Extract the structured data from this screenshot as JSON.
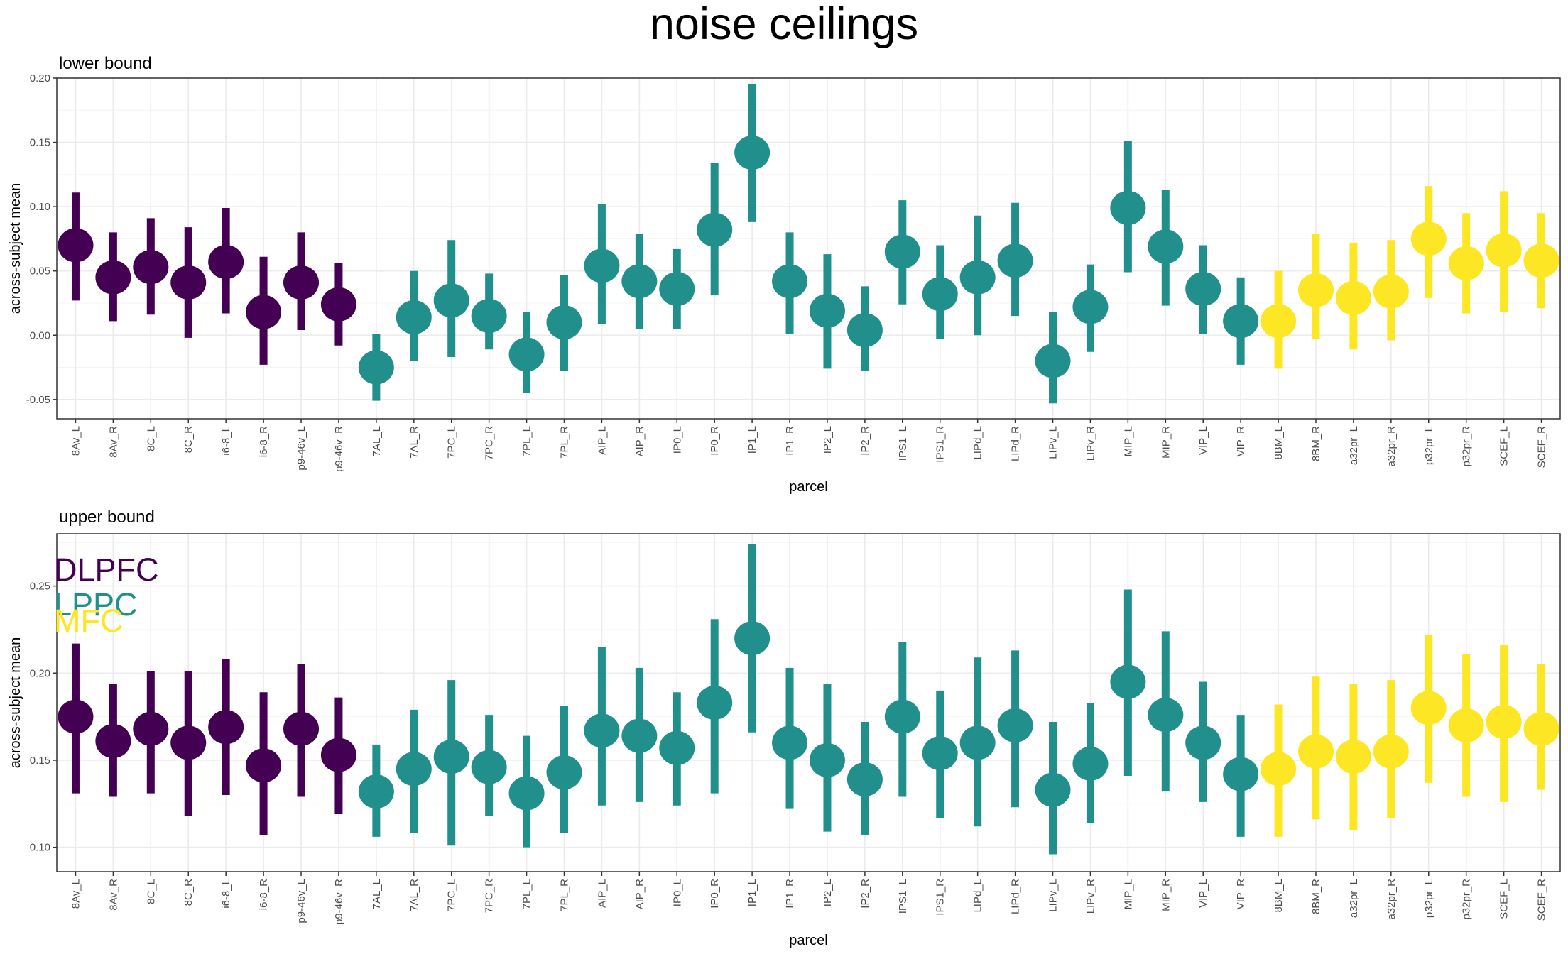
{
  "title": "noise ceilings",
  "colors": {
    "DLPFC": "#440154",
    "LPPC": "#21908C",
    "MFC": "#FDE725",
    "grid_major": "#ebebeb",
    "grid_minor": "#f4f4f4",
    "panel_border": "#333333"
  },
  "legend": [
    {
      "label": "DLPFC",
      "color": "#440154"
    },
    {
      "label": "LPPC",
      "color": "#21908C"
    },
    {
      "label": "MFC",
      "color": "#FDE725"
    }
  ],
  "chart_data": [
    {
      "type": "scatter",
      "title": "lower bound",
      "xlabel": "parcel",
      "ylabel": "across-subject mean",
      "ylim": [
        -0.065,
        0.2
      ],
      "yticks": [
        -0.05,
        0.0,
        0.05,
        0.1,
        0.15,
        0.2
      ],
      "ytick_labels": [
        "-0.05",
        "0.00",
        "0.05",
        "0.10",
        "0.15",
        "0.20"
      ],
      "grid": true,
      "categories": [
        "8Av_L",
        "8Av_R",
        "8C_L",
        "8C_R",
        "i6-8_L",
        "i6-8_R",
        "p9-46v_L",
        "p9-46v_R",
        "7AL_L",
        "7AL_R",
        "7PC_L",
        "7PC_R",
        "7PL_L",
        "7PL_R",
        "AIP_L",
        "AIP_R",
        "IP0_L",
        "IP0_R",
        "IP1_L",
        "IP1_R",
        "IP2_L",
        "IP2_R",
        "IPS1_L",
        "IPS1_R",
        "LIPd_L",
        "LIPd_R",
        "LIPv_L",
        "LIPv_R",
        "MIP_L",
        "MIP_R",
        "VIP_L",
        "VIP_R",
        "8BM_L",
        "8BM_R",
        "a32pr_L",
        "a32pr_R",
        "p32pr_L",
        "p32pr_R",
        "SCEF_L",
        "SCEF_R"
      ],
      "groups": [
        "DLPFC",
        "DLPFC",
        "DLPFC",
        "DLPFC",
        "DLPFC",
        "DLPFC",
        "DLPFC",
        "DLPFC",
        "LPPC",
        "LPPC",
        "LPPC",
        "LPPC",
        "LPPC",
        "LPPC",
        "LPPC",
        "LPPC",
        "LPPC",
        "LPPC",
        "LPPC",
        "LPPC",
        "LPPC",
        "LPPC",
        "LPPC",
        "LPPC",
        "LPPC",
        "LPPC",
        "LPPC",
        "LPPC",
        "LPPC",
        "LPPC",
        "LPPC",
        "LPPC",
        "MFC",
        "MFC",
        "MFC",
        "MFC",
        "MFC",
        "MFC",
        "MFC",
        "MFC"
      ],
      "mean": [
        0.07,
        0.045,
        0.053,
        0.041,
        0.057,
        0.018,
        0.041,
        0.024,
        -0.025,
        0.014,
        0.027,
        0.015,
        -0.015,
        0.01,
        0.054,
        0.042,
        0.036,
        0.082,
        0.142,
        0.042,
        0.019,
        0.004,
        0.065,
        0.032,
        0.045,
        0.058,
        -0.02,
        0.022,
        0.099,
        0.069,
        0.036,
        0.011,
        0.011,
        0.035,
        0.029,
        0.034,
        0.075,
        0.056,
        0.066,
        0.058
      ],
      "lower": [
        0.027,
        0.011,
        0.016,
        -0.002,
        0.017,
        -0.023,
        0.004,
        -0.008,
        -0.051,
        -0.02,
        -0.017,
        -0.011,
        -0.045,
        -0.028,
        0.009,
        0.005,
        0.005,
        0.031,
        0.088,
        0.001,
        -0.026,
        -0.028,
        0.024,
        -0.003,
        0.0,
        0.015,
        -0.053,
        -0.013,
        0.049,
        0.023,
        0.001,
        -0.023,
        -0.026,
        -0.003,
        -0.011,
        -0.004,
        0.029,
        0.017,
        0.018,
        0.021
      ],
      "upper": [
        0.111,
        0.08,
        0.091,
        0.084,
        0.099,
        0.061,
        0.08,
        0.056,
        0.001,
        0.05,
        0.074,
        0.048,
        0.018,
        0.047,
        0.102,
        0.079,
        0.067,
        0.134,
        0.195,
        0.08,
        0.063,
        0.038,
        0.105,
        0.07,
        0.093,
        0.103,
        0.018,
        0.055,
        0.151,
        0.113,
        0.07,
        0.045,
        0.05,
        0.079,
        0.072,
        0.074,
        0.116,
        0.095,
        0.112,
        0.095
      ]
    },
    {
      "type": "scatter",
      "title": "upper bound",
      "xlabel": "parcel",
      "ylabel": "across-subject mean",
      "ylim": [
        0.086,
        0.28
      ],
      "yticks": [
        0.1,
        0.15,
        0.2,
        0.25
      ],
      "ytick_labels": [
        "0.10",
        "0.15",
        "0.20",
        "0.25"
      ],
      "grid": true,
      "legend_position": "top-left",
      "categories": [
        "8Av_L",
        "8Av_R",
        "8C_L",
        "8C_R",
        "i6-8_L",
        "i6-8_R",
        "p9-46v_L",
        "p9-46v_R",
        "7AL_L",
        "7AL_R",
        "7PC_L",
        "7PC_R",
        "7PL_L",
        "7PL_R",
        "AIP_L",
        "AIP_R",
        "IP0_L",
        "IP0_R",
        "IP1_L",
        "IP1_R",
        "IP2_L",
        "IP2_R",
        "IPS1_L",
        "IPS1_R",
        "LIPd_L",
        "LIPd_R",
        "LIPv_L",
        "LIPv_R",
        "MIP_L",
        "MIP_R",
        "VIP_L",
        "VIP_R",
        "8BM_L",
        "8BM_R",
        "a32pr_L",
        "a32pr_R",
        "p32pr_L",
        "p32pr_R",
        "SCEF_L",
        "SCEF_R"
      ],
      "groups": [
        "DLPFC",
        "DLPFC",
        "DLPFC",
        "DLPFC",
        "DLPFC",
        "DLPFC",
        "DLPFC",
        "DLPFC",
        "LPPC",
        "LPPC",
        "LPPC",
        "LPPC",
        "LPPC",
        "LPPC",
        "LPPC",
        "LPPC",
        "LPPC",
        "LPPC",
        "LPPC",
        "LPPC",
        "LPPC",
        "LPPC",
        "LPPC",
        "LPPC",
        "LPPC",
        "LPPC",
        "LPPC",
        "LPPC",
        "LPPC",
        "LPPC",
        "LPPC",
        "LPPC",
        "MFC",
        "MFC",
        "MFC",
        "MFC",
        "MFC",
        "MFC",
        "MFC",
        "MFC"
      ],
      "mean": [
        0.175,
        0.161,
        0.168,
        0.16,
        0.169,
        0.147,
        0.168,
        0.153,
        0.132,
        0.145,
        0.152,
        0.146,
        0.131,
        0.143,
        0.167,
        0.164,
        0.157,
        0.183,
        0.22,
        0.16,
        0.15,
        0.139,
        0.175,
        0.154,
        0.16,
        0.17,
        0.133,
        0.148,
        0.195,
        0.176,
        0.16,
        0.142,
        0.145,
        0.155,
        0.152,
        0.155,
        0.18,
        0.17,
        0.172,
        0.168
      ],
      "lower": [
        0.131,
        0.129,
        0.131,
        0.118,
        0.13,
        0.107,
        0.129,
        0.119,
        0.106,
        0.108,
        0.101,
        0.118,
        0.1,
        0.108,
        0.124,
        0.126,
        0.124,
        0.131,
        0.166,
        0.122,
        0.109,
        0.107,
        0.129,
        0.117,
        0.112,
        0.123,
        0.096,
        0.114,
        0.141,
        0.132,
        0.126,
        0.106,
        0.106,
        0.116,
        0.11,
        0.117,
        0.137,
        0.129,
        0.126,
        0.133
      ],
      "upper": [
        0.217,
        0.194,
        0.201,
        0.201,
        0.208,
        0.189,
        0.205,
        0.186,
        0.159,
        0.179,
        0.196,
        0.176,
        0.164,
        0.181,
        0.215,
        0.203,
        0.189,
        0.231,
        0.274,
        0.203,
        0.194,
        0.172,
        0.218,
        0.19,
        0.209,
        0.213,
        0.172,
        0.183,
        0.248,
        0.224,
        0.195,
        0.176,
        0.182,
        0.198,
        0.194,
        0.196,
        0.222,
        0.211,
        0.216,
        0.205
      ]
    }
  ]
}
